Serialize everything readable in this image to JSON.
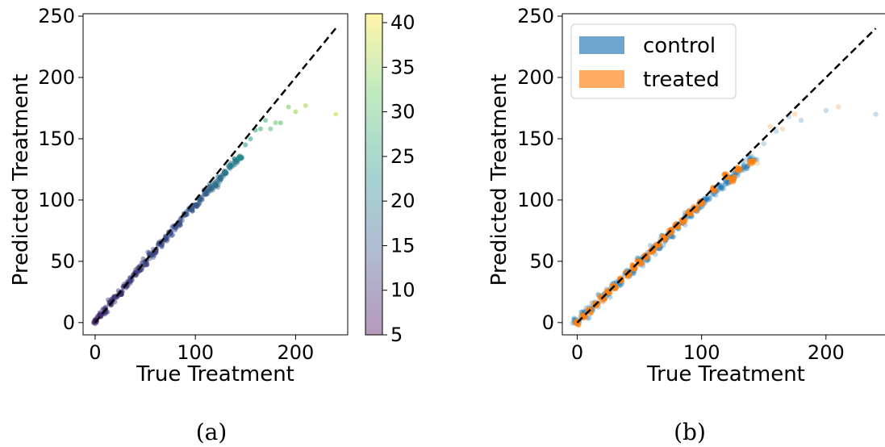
{
  "chart_data": [
    {
      "type": "scatter",
      "panel_caption": "(a)",
      "xlabel": "True Treatment",
      "ylabel": "Predicted Treatment",
      "xlim": [
        -12,
        252
      ],
      "ylim": [
        -10,
        252
      ],
      "xticks": [
        0,
        100,
        200
      ],
      "yticks": [
        0,
        50,
        100,
        150,
        200,
        250
      ],
      "grid": false,
      "reference_line": {
        "style": "dashed",
        "color": "#000000",
        "from": [
          0,
          0
        ],
        "to": [
          240,
          240
        ]
      },
      "colorbar": {
        "colormap": "viridis",
        "range": [
          5,
          41
        ],
        "ticks": [
          5,
          10,
          15,
          20,
          25,
          30,
          35,
          40
        ]
      },
      "points_summary": "dense cluster along diagonal from about (0,0) to (140,140); predictions slightly below the diagonal at higher values",
      "points": [
        {
          "x": 0,
          "y": 1,
          "c": 8
        },
        {
          "x": 5,
          "y": 6,
          "c": 9
        },
        {
          "x": 10,
          "y": 10,
          "c": 10
        },
        {
          "x": 15,
          "y": 16,
          "c": 10
        },
        {
          "x": 20,
          "y": 20,
          "c": 11
        },
        {
          "x": 25,
          "y": 24,
          "c": 10
        },
        {
          "x": 30,
          "y": 30,
          "c": 11
        },
        {
          "x": 35,
          "y": 34,
          "c": 12
        },
        {
          "x": 40,
          "y": 40,
          "c": 11
        },
        {
          "x": 45,
          "y": 44,
          "c": 12
        },
        {
          "x": 50,
          "y": 49,
          "c": 12
        },
        {
          "x": 55,
          "y": 55,
          "c": 13
        },
        {
          "x": 60,
          "y": 58,
          "c": 12
        },
        {
          "x": 65,
          "y": 64,
          "c": 13
        },
        {
          "x": 70,
          "y": 68,
          "c": 13
        },
        {
          "x": 75,
          "y": 73,
          "c": 14
        },
        {
          "x": 80,
          "y": 78,
          "c": 14
        },
        {
          "x": 85,
          "y": 82,
          "c": 14
        },
        {
          "x": 90,
          "y": 88,
          "c": 15
        },
        {
          "x": 95,
          "y": 92,
          "c": 15
        },
        {
          "x": 100,
          "y": 96,
          "c": 15
        },
        {
          "x": 105,
          "y": 100,
          "c": 16
        },
        {
          "x": 110,
          "y": 106,
          "c": 16
        },
        {
          "x": 115,
          "y": 110,
          "c": 17
        },
        {
          "x": 120,
          "y": 113,
          "c": 18
        },
        {
          "x": 125,
          "y": 118,
          "c": 18
        },
        {
          "x": 130,
          "y": 122,
          "c": 19
        },
        {
          "x": 135,
          "y": 127,
          "c": 20
        },
        {
          "x": 140,
          "y": 131,
          "c": 20
        },
        {
          "x": 145,
          "y": 135,
          "c": 22
        },
        {
          "x": 150,
          "y": 145,
          "c": 23
        },
        {
          "x": 155,
          "y": 150,
          "c": 24
        },
        {
          "x": 160,
          "y": 157,
          "c": 25
        },
        {
          "x": 165,
          "y": 158,
          "c": 27
        },
        {
          "x": 170,
          "y": 165,
          "c": 28
        },
        {
          "x": 175,
          "y": 158,
          "c": 30
        },
        {
          "x": 180,
          "y": 163,
          "c": 32
        },
        {
          "x": 193,
          "y": 176,
          "c": 33
        },
        {
          "x": 200,
          "y": 172,
          "c": 35
        },
        {
          "x": 210,
          "y": 177,
          "c": 36
        },
        {
          "x": 240,
          "y": 170,
          "c": 38
        },
        {
          "x": 185,
          "y": 163,
          "c": 30
        }
      ]
    },
    {
      "type": "scatter",
      "panel_caption": "(b)",
      "xlabel": "True Treatment",
      "ylabel": "Predicted Treatment",
      "xlim": [
        -12,
        252
      ],
      "ylim": [
        -10,
        252
      ],
      "xticks": [
        0,
        100,
        200
      ],
      "yticks": [
        0,
        50,
        100,
        150,
        200,
        250
      ],
      "grid": false,
      "legend": {
        "placement": "upper-left"
      },
      "reference_line": {
        "style": "dashed",
        "color": "#000000",
        "from": [
          0,
          0
        ],
        "to": [
          240,
          240
        ]
      },
      "series": [
        {
          "name": "control",
          "color": "#1f77b4",
          "points": [
            [
              0,
              1
            ],
            [
              5,
              6
            ],
            [
              10,
              11
            ],
            [
              15,
              15
            ],
            [
              20,
              21
            ],
            [
              25,
              24
            ],
            [
              30,
              30
            ],
            [
              35,
              33
            ],
            [
              40,
              40
            ],
            [
              45,
              43
            ],
            [
              50,
              50
            ],
            [
              55,
              53
            ],
            [
              60,
              59
            ],
            [
              65,
              62
            ],
            [
              70,
              69
            ],
            [
              75,
              72
            ],
            [
              80,
              79
            ],
            [
              85,
              82
            ],
            [
              90,
              88
            ],
            [
              95,
              92
            ],
            [
              100,
              97
            ],
            [
              105,
              101
            ],
            [
              110,
              107
            ],
            [
              115,
              110
            ],
            [
              120,
              115
            ],
            [
              125,
              119
            ],
            [
              130,
              123
            ],
            [
              135,
              128
            ],
            [
              140,
              133
            ],
            [
              150,
              146
            ],
            [
              160,
              156
            ],
            [
              170,
              168
            ],
            [
              180,
              165
            ],
            [
              200,
              173
            ],
            [
              240,
              170
            ]
          ]
        },
        {
          "name": "treated",
          "color": "#ff7f0e",
          "points": [
            [
              0,
              0
            ],
            [
              5,
              5
            ],
            [
              10,
              10
            ],
            [
              15,
              15
            ],
            [
              20,
              20
            ],
            [
              25,
              25
            ],
            [
              30,
              29
            ],
            [
              35,
              35
            ],
            [
              40,
              39
            ],
            [
              45,
              45
            ],
            [
              50,
              49
            ],
            [
              55,
              54
            ],
            [
              60,
              59
            ],
            [
              65,
              64
            ],
            [
              70,
              69
            ],
            [
              75,
              74
            ],
            [
              80,
              79
            ],
            [
              85,
              83
            ],
            [
              90,
              89
            ],
            [
              95,
              93
            ],
            [
              100,
              98
            ],
            [
              110,
              108
            ],
            [
              120,
              120
            ],
            [
              125,
              117
            ],
            [
              130,
              125
            ],
            [
              140,
              131
            ],
            [
              145,
              130
            ],
            [
              155,
              160
            ],
            [
              165,
              158
            ],
            [
              175,
              170
            ],
            [
              210,
              176
            ]
          ]
        }
      ]
    }
  ]
}
